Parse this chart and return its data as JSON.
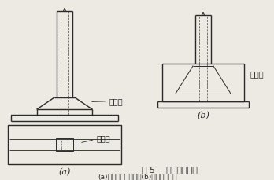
{
  "title": "图 5    柱脚底板加固",
  "subtitle": "(a)增设加劲肋加固；(b)浇混凝土加固",
  "label_a": "(a)",
  "label_b": "(b)",
  "label_jiajin1": "加劲肋",
  "label_jiajin2": "加劲肋",
  "label_hunningtu": "混凝土",
  "bg_color": "#ede9e3",
  "line_color": "#2a2a2a",
  "dashed_color": "#555555",
  "fig_title_size": 8,
  "subtitle_size": 6.5,
  "lw_main": 1.0,
  "lw_thin": 0.7
}
